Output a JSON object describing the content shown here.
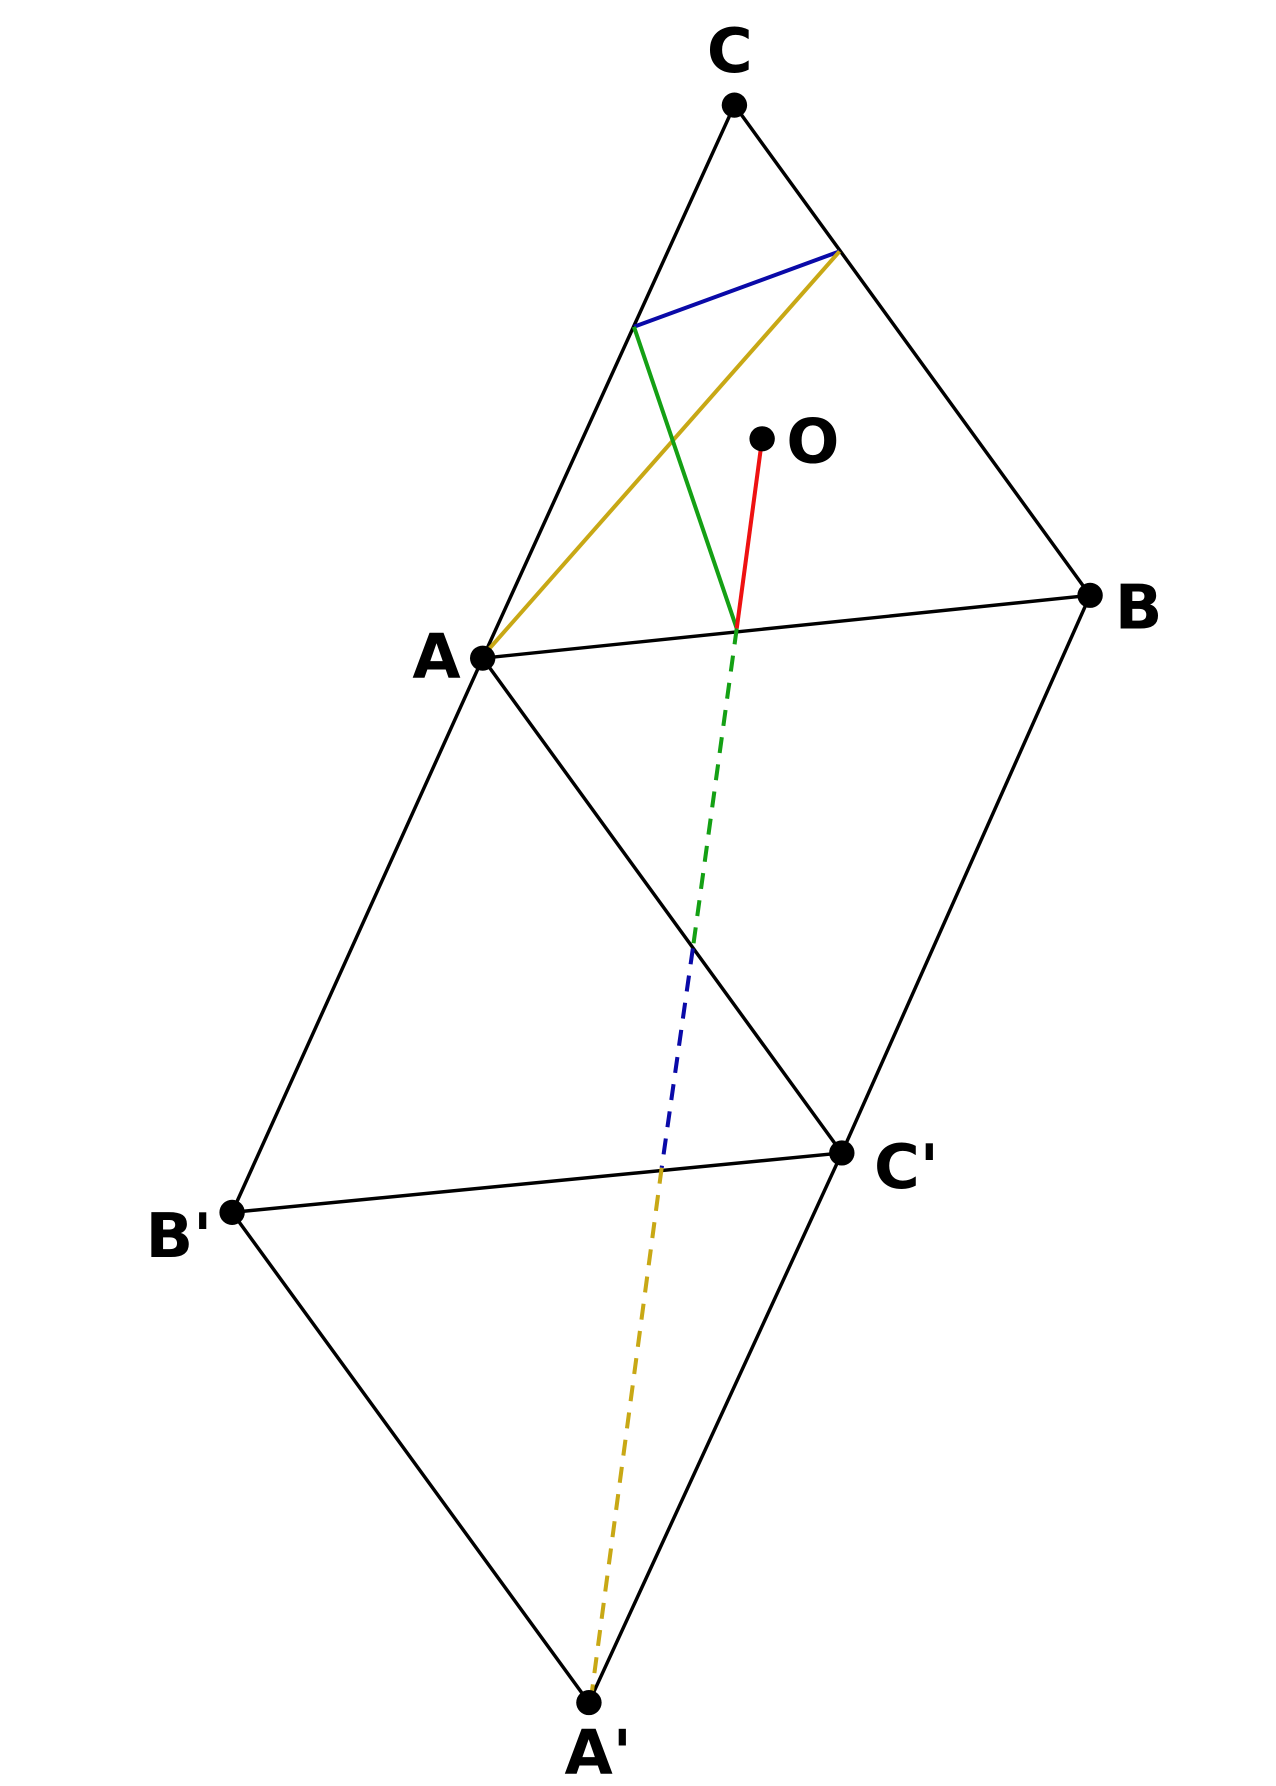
{
  "points": [
    {
      "label": "C"
    },
    {
      "label": "O"
    },
    {
      "label": "B"
    },
    {
      "label": "A"
    },
    {
      "label": "C'"
    },
    {
      "label": "B'"
    },
    {
      "label": "A'"
    }
  ]
}
